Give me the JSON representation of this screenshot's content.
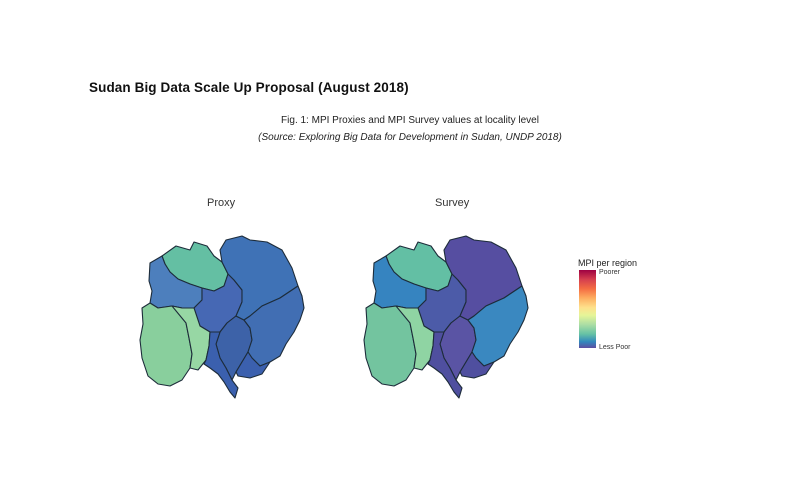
{
  "document": {
    "title": "Sudan Big Data Scale Up Proposal (August 2018)"
  },
  "figure": {
    "caption": "Fig. 1: MPI Proxies and MPI Survey values at locality level",
    "source": "(Source: Exploring Big Data for Development in Sudan, UNDP 2018)",
    "panels": [
      {
        "title": "Proxy",
        "regions": {
          "northwest": "#64bfa3",
          "west_small": "#4d7fbd",
          "central": "#4668b4",
          "west_large": "#89cf9d",
          "south_central": "#97d7a4",
          "east_strip": "#3d62a8",
          "northeast": "#3f72b6",
          "east": "#416eb3",
          "southeast": "#3b60ae"
        }
      },
      {
        "title": "Survey",
        "regions": {
          "northwest": "#63bfa4",
          "west_small": "#3684c0",
          "central": "#4c5ba8",
          "west_large": "#73c49f",
          "south_central": "#8fd4a3",
          "east_strip": "#5a54a4",
          "northeast": "#564ea1",
          "east": "#3a88c0",
          "southeast": "#4f4f9f"
        }
      }
    ],
    "legend": {
      "title": "MPI per region",
      "top_label": "Poorer",
      "bottom_label": "Less Poor",
      "gradient_top": "#9e0142",
      "gradient_bottom": "#5e4fa2"
    }
  }
}
